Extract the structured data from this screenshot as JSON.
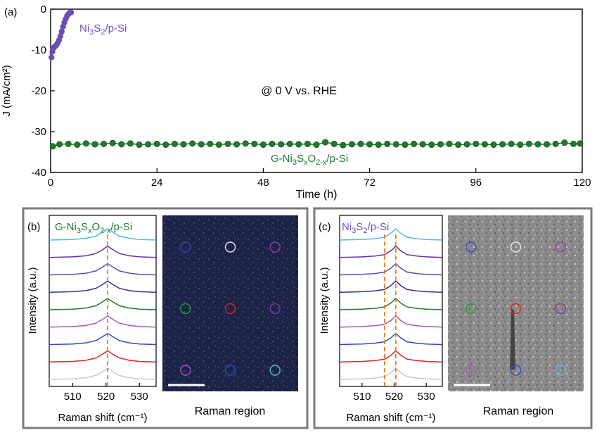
{
  "colors": {
    "green": "#1f7a2c",
    "purple": "#6a4fb3",
    "orange": "#e67e22",
    "panel_border": "#7a7a7a",
    "raman_b_bg": "#1c2346",
    "raman_c_bg": "#8c8c8c"
  },
  "chart_data": [
    {
      "panel": "(a)",
      "type": "scatter",
      "xlabel": "Time (h)",
      "ylabel": "J (mA/cm²)",
      "xlim": [
        0,
        120
      ],
      "ylim": [
        -40,
        0
      ],
      "xticks": [
        "0",
        "24",
        "48",
        "72",
        "96",
        "120"
      ],
      "yticks": [
        "0",
        "-10",
        "-20",
        "-30",
        "-40"
      ],
      "annotation": "@ 0 V vs. RHE",
      "series": [
        {
          "name": "Ni3S2/p-Si",
          "color": "#6a4fb3",
          "x": [
            0.2,
            0.4,
            0.6,
            0.8,
            1.0,
            1.3,
            1.6,
            1.9,
            2.2,
            2.5,
            2.8,
            3.1,
            3.4,
            3.7,
            4.0,
            4.3,
            4.6
          ],
          "y": [
            -11.8,
            -10.4,
            -9.6,
            -9.3,
            -9.1,
            -8.8,
            -8.3,
            -7.6,
            -6.6,
            -5.5,
            -4.3,
            -3.3,
            -2.4,
            -1.7,
            -1.2,
            -0.9,
            -0.8
          ]
        },
        {
          "name": "G-Ni3SxO2-x/p-Si",
          "color": "#1f7a2c",
          "x": [
            0.5,
            2,
            4,
            6,
            8,
            10,
            12,
            14,
            16,
            18,
            20,
            22,
            24,
            26,
            28,
            30,
            32,
            34,
            36,
            38,
            40,
            42,
            44,
            46,
            48,
            50,
            52,
            54,
            56,
            58,
            60,
            62,
            64,
            66,
            68,
            70,
            72,
            74,
            76,
            78,
            80,
            82,
            84,
            86,
            88,
            90,
            92,
            94,
            96,
            98,
            100,
            102,
            104,
            106,
            108,
            110,
            112,
            114,
            116,
            118,
            119.5
          ],
          "y": [
            -33.6,
            -33.1,
            -33.0,
            -33.2,
            -32.9,
            -33.1,
            -33.0,
            -32.8,
            -33.1,
            -32.9,
            -33.2,
            -33.1,
            -33.0,
            -33.2,
            -33.0,
            -33.1,
            -32.9,
            -33.1,
            -33.0,
            -33.2,
            -33.0,
            -33.1,
            -32.9,
            -33.0,
            -33.2,
            -33.0,
            -33.1,
            -33.0,
            -33.1,
            -33.0,
            -33.2,
            -32.6,
            -33.0,
            -33.3,
            -33.1,
            -33.0,
            -33.1,
            -33.2,
            -33.0,
            -33.1,
            -33.2,
            -33.0,
            -33.1,
            -33.2,
            -33.1,
            -33.0,
            -33.2,
            -33.1,
            -33.0,
            -33.1,
            -33.2,
            -33.1,
            -33.0,
            -33.2,
            -33.0,
            -33.1,
            -33.1,
            -33.0,
            -32.7,
            -33.0,
            -32.9
          ]
        }
      ]
    },
    {
      "panel": "(b)",
      "type": "line",
      "title": "G-Ni3SxO2-x/p-Si",
      "xlabel": "Raman shift (cm⁻¹)",
      "ylabel": "Intensity (a.u.)",
      "xlim": [
        503,
        535
      ],
      "xticks": [
        "510",
        "520",
        "530"
      ],
      "peak_lines": [
        520.5
      ],
      "raman_label": "Raman region",
      "series": [
        {
          "color": "#c8c8c8",
          "x": [
            503,
            510,
            514,
            517,
            519,
            520.5,
            522,
            524,
            527,
            530,
            535
          ],
          "y": [
            0.0,
            0.05,
            0.15,
            0.35,
            0.7,
            1.0,
            0.7,
            0.35,
            0.15,
            0.05,
            0.0
          ]
        },
        {
          "color": "#e02424",
          "x": [
            503,
            510,
            514,
            517,
            519,
            520.5,
            522,
            524,
            527,
            530,
            535
          ],
          "y": [
            0.0,
            0.05,
            0.15,
            0.35,
            0.7,
            1.0,
            0.7,
            0.35,
            0.15,
            0.05,
            0.0
          ]
        },
        {
          "color": "#2d4bc9",
          "x": [
            503,
            510,
            514,
            517,
            519,
            520.5,
            522,
            524,
            527,
            530,
            535
          ],
          "y": [
            0.0,
            0.05,
            0.15,
            0.35,
            0.7,
            1.0,
            0.7,
            0.35,
            0.15,
            0.05,
            0.0
          ]
        },
        {
          "color": "#b050c0",
          "x": [
            503,
            510,
            514,
            517,
            519,
            520.5,
            522,
            524,
            527,
            530,
            535
          ],
          "y": [
            0.0,
            0.05,
            0.15,
            0.35,
            0.7,
            1.0,
            0.7,
            0.35,
            0.15,
            0.05,
            0.0
          ]
        },
        {
          "color": "#1f7a2c",
          "x": [
            503,
            510,
            514,
            517,
            519,
            520.5,
            522,
            524,
            527,
            530,
            535
          ],
          "y": [
            0.0,
            0.05,
            0.15,
            0.35,
            0.7,
            1.0,
            0.7,
            0.35,
            0.15,
            0.05,
            0.0
          ]
        },
        {
          "color": "#2d2f9a",
          "x": [
            503,
            510,
            514,
            517,
            519,
            520.5,
            522,
            524,
            527,
            530,
            535
          ],
          "y": [
            0.0,
            0.05,
            0.15,
            0.35,
            0.7,
            1.0,
            0.7,
            0.35,
            0.15,
            0.05,
            0.0
          ]
        },
        {
          "color": "#5b4bc0",
          "x": [
            503,
            510,
            514,
            517,
            519,
            520.5,
            522,
            524,
            527,
            530,
            535
          ],
          "y": [
            0.0,
            0.05,
            0.15,
            0.35,
            0.7,
            1.0,
            0.7,
            0.35,
            0.15,
            0.05,
            0.0
          ]
        },
        {
          "color": "#6b2fa0",
          "x": [
            503,
            510,
            514,
            517,
            519,
            520.5,
            522,
            524,
            527,
            530,
            535
          ],
          "y": [
            0.0,
            0.05,
            0.15,
            0.35,
            0.7,
            1.0,
            0.7,
            0.35,
            0.15,
            0.05,
            0.0
          ]
        },
        {
          "color": "#49c1d1",
          "x": [
            503,
            510,
            514,
            517,
            519,
            520.5,
            522,
            524,
            527,
            530,
            535
          ],
          "y": [
            0.0,
            0.05,
            0.15,
            0.35,
            0.7,
            1.0,
            0.7,
            0.35,
            0.15,
            0.05,
            0.0
          ]
        }
      ],
      "map_circles": [
        {
          "color": "#3a46b0"
        },
        {
          "color": "#e8e8e8"
        },
        {
          "color": "#9b3db0"
        },
        {
          "color": "#2a9d3a"
        },
        {
          "color": "#e02424"
        },
        {
          "color": "#7a3fa0"
        },
        {
          "color": "#b64fc4"
        },
        {
          "color": "#2d4bc9"
        },
        {
          "color": "#4fc3d6"
        }
      ]
    },
    {
      "panel": "(c)",
      "type": "line",
      "title": "Ni3S2/p-Si",
      "xlabel": "Raman shift (cm⁻¹)",
      "ylabel": "Intensity (a.u.)",
      "xlim": [
        503,
        535
      ],
      "xticks": [
        "510",
        "520",
        "530"
      ],
      "peak_lines": [
        517,
        520.5
      ],
      "raman_label": "Raman region",
      "series": [
        {
          "color": "#c8c8c8",
          "x": [
            503,
            510,
            514,
            517,
            519,
            520.5,
            522,
            524,
            527,
            530,
            535
          ],
          "y": [
            0.0,
            0.05,
            0.12,
            0.25,
            0.6,
            1.0,
            0.6,
            0.25,
            0.12,
            0.05,
            0.0
          ]
        },
        {
          "color": "#e02424",
          "x": [
            503,
            510,
            514,
            517,
            519,
            520.5,
            522,
            524,
            527,
            530,
            535
          ],
          "y": [
            0.0,
            0.05,
            0.12,
            0.25,
            0.6,
            1.0,
            0.6,
            0.25,
            0.12,
            0.05,
            0.0
          ]
        },
        {
          "color": "#2d4bc9",
          "x": [
            503,
            510,
            514,
            517,
            519,
            520.5,
            522,
            524,
            527,
            530,
            535
          ],
          "y": [
            0.0,
            0.05,
            0.12,
            0.25,
            0.6,
            1.0,
            0.6,
            0.25,
            0.12,
            0.05,
            0.0
          ]
        },
        {
          "color": "#b050c0",
          "x": [
            503,
            510,
            514,
            517,
            519,
            520.5,
            522,
            524,
            527,
            530,
            535
          ],
          "y": [
            0.0,
            0.05,
            0.12,
            0.25,
            0.6,
            1.0,
            0.6,
            0.25,
            0.12,
            0.05,
            0.0
          ]
        },
        {
          "color": "#1f7a2c",
          "x": [
            503,
            510,
            514,
            517,
            519,
            520.5,
            522,
            524,
            527,
            530,
            535
          ],
          "y": [
            0.0,
            0.05,
            0.12,
            0.25,
            0.6,
            1.0,
            0.6,
            0.25,
            0.12,
            0.05,
            0.0
          ]
        },
        {
          "color": "#2d2f9a",
          "x": [
            503,
            510,
            514,
            517,
            519,
            520.5,
            522,
            524,
            527,
            530,
            535
          ],
          "y": [
            0.0,
            0.05,
            0.12,
            0.25,
            0.6,
            1.0,
            0.6,
            0.25,
            0.12,
            0.05,
            0.0
          ]
        },
        {
          "color": "#5b4bc0",
          "x": [
            503,
            510,
            514,
            517,
            519,
            520.5,
            522,
            524,
            527,
            530,
            535
          ],
          "y": [
            0.0,
            0.05,
            0.12,
            0.25,
            0.6,
            1.0,
            0.6,
            0.25,
            0.12,
            0.05,
            0.0
          ]
        },
        {
          "color": "#6b2fa0",
          "x": [
            503,
            510,
            514,
            517,
            519,
            520.5,
            522,
            524,
            527,
            530,
            535
          ],
          "y": [
            0.0,
            0.05,
            0.12,
            0.25,
            0.6,
            1.0,
            0.6,
            0.25,
            0.12,
            0.05,
            0.0
          ]
        },
        {
          "color": "#49c1d1",
          "x": [
            503,
            510,
            514,
            517,
            519,
            520.5,
            522,
            524,
            527,
            530,
            535
          ],
          "y": [
            0.0,
            0.05,
            0.12,
            0.25,
            0.6,
            1.0,
            0.6,
            0.25,
            0.12,
            0.05,
            0.0
          ]
        }
      ],
      "map_circles": [
        {
          "color": "#3a46b0"
        },
        {
          "color": "#e8e8e8"
        },
        {
          "color": "#9b3db0"
        },
        {
          "color": "#2a9d3a"
        },
        {
          "color": "#e02424"
        },
        {
          "color": "#7a3fa0"
        },
        {
          "color": "#b64fc4"
        },
        {
          "color": "#2d4bc9"
        },
        {
          "color": "#4fc3d6"
        }
      ]
    }
  ]
}
